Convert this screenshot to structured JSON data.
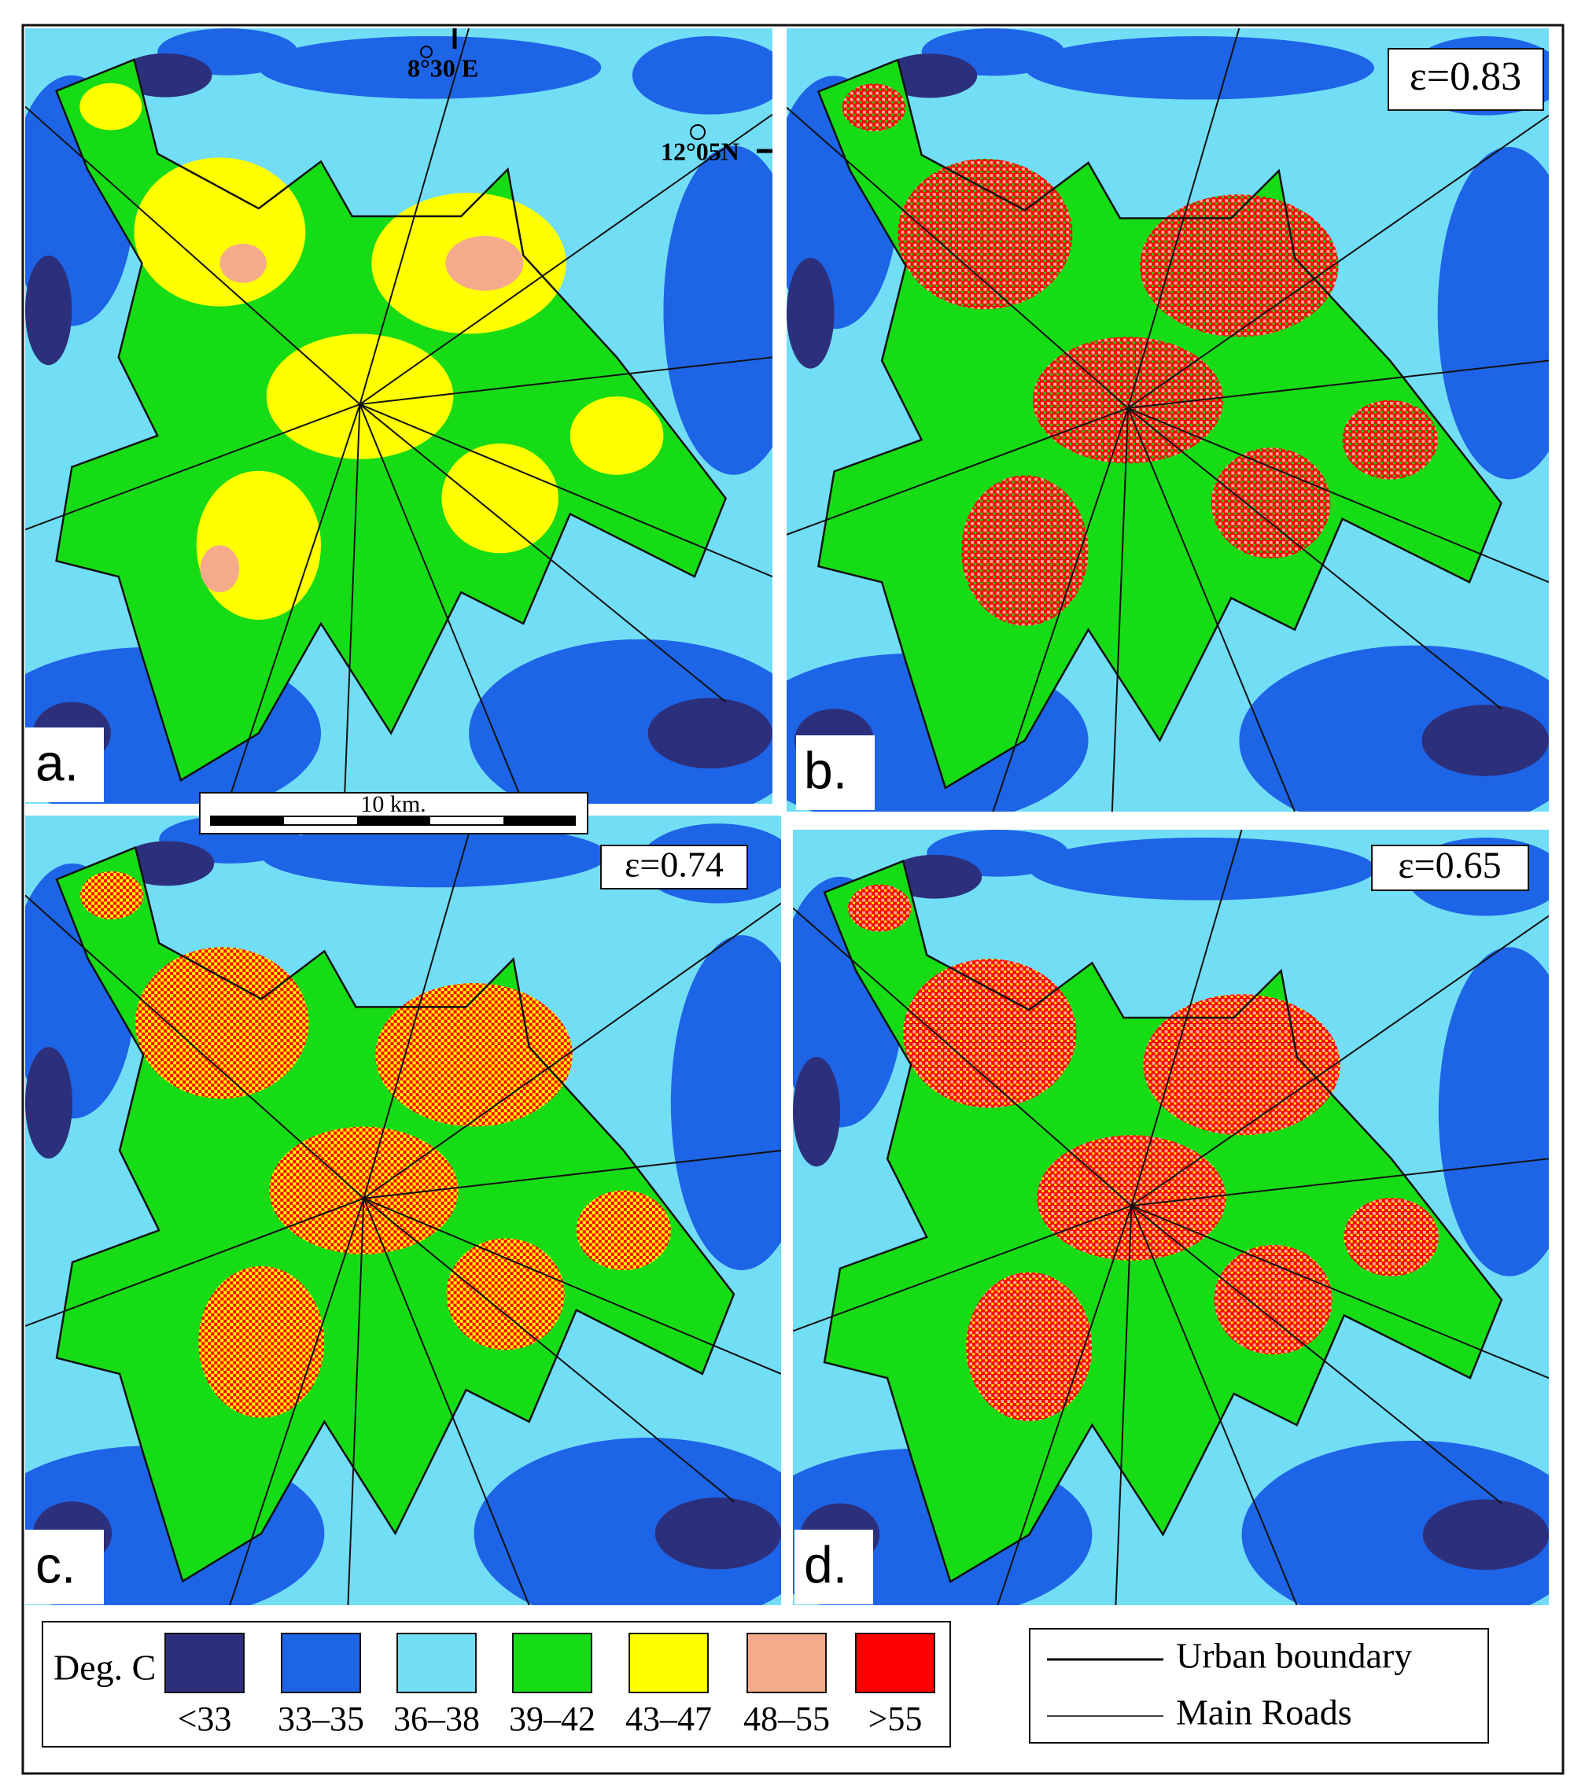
{
  "panels": [
    {
      "label": "a."
    },
    {
      "label": "b.",
      "emissivity": "ε=0.83"
    },
    {
      "label": "c.",
      "emissivity": "ε=0.74"
    },
    {
      "label": "d.",
      "emissivity": "ε=0.65"
    }
  ],
  "coordinates": {
    "longitude": "8°30 E",
    "latitude": "12°05N"
  },
  "scale_bar": "10 km.",
  "legend": {
    "title": "Deg. C",
    "items": [
      {
        "label": "<33",
        "color": "#2c2f7c"
      },
      {
        "label": "33–35",
        "color": "#1e64e6"
      },
      {
        "label": "36–38",
        "color": "#72def6"
      },
      {
        "label": "39–42",
        "color": "#16dc16"
      },
      {
        "label": "43–47",
        "color": "#ffff00"
      },
      {
        "label": "48–55",
        "color": "#f6aa8c"
      },
      {
        "label": ">55",
        "color": "#ff0000"
      }
    ]
  },
  "line_legend": [
    "Urban boundary",
    "Main Roads"
  ]
}
